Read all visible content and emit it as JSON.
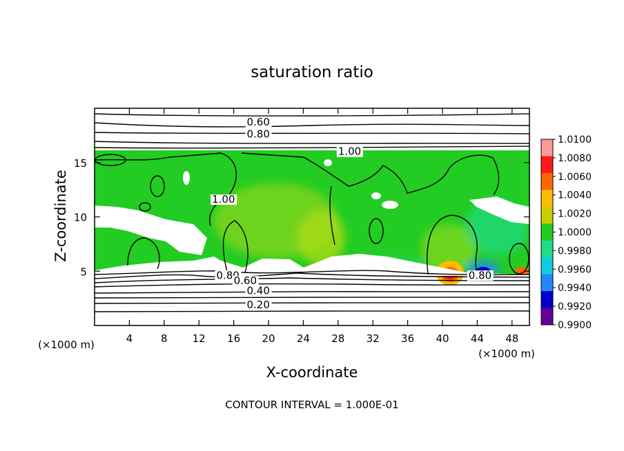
{
  "chart_data": {
    "type": "heatmap",
    "title": "saturation ratio",
    "xlabel": "X-coordinate",
    "ylabel": "Z-coordinate",
    "x_unit_note": "(×1000 m)",
    "y_unit_note": "(×1000 m)",
    "xlim": [
      0,
      50
    ],
    "ylim": [
      0,
      20
    ],
    "x_ticks": [
      4,
      8,
      12,
      16,
      20,
      24,
      28,
      32,
      36,
      40,
      44,
      48
    ],
    "y_ticks": [
      5,
      10,
      15
    ],
    "footer": "CONTOUR INTERVAL = 1.000E-01",
    "colorbar": {
      "levels": [
        "1.0100",
        "1.0080",
        "1.0060",
        "1.0040",
        "1.0020",
        "1.0000",
        "0.9980",
        "0.9960",
        "0.9940",
        "0.9920",
        "0.9900"
      ],
      "colors": [
        "#ff9999",
        "#ff1a1a",
        "#ff6600",
        "#ffbb00",
        "#cccc00",
        "#22cc22",
        "#22dd88",
        "#11ccdd",
        "#2288ff",
        "#0000cc",
        "#660099"
      ]
    },
    "contour_labels": [
      {
        "text": "0.60",
        "x": 17.5,
        "y": 18.4
      },
      {
        "text": "0.80",
        "x": 17.5,
        "y": 17.3
      },
      {
        "text": "1.00",
        "x": 28.0,
        "y": 15.7
      },
      {
        "text": "1.00",
        "x": 13.5,
        "y": 11.3
      },
      {
        "text": "0.80",
        "x": 14.0,
        "y": 4.3
      },
      {
        "text": "0.60",
        "x": 16.0,
        "y": 3.8
      },
      {
        "text": "0.40",
        "x": 17.5,
        "y": 2.9
      },
      {
        "text": "0.20",
        "x": 17.5,
        "y": 1.6
      },
      {
        "text": "0.80",
        "x": 43.0,
        "y": 4.3
      }
    ]
  }
}
